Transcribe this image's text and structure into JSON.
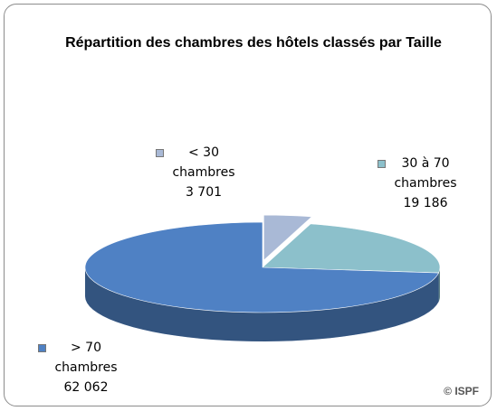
{
  "chart_data": {
    "type": "pie3d",
    "title": "Répartition des chambres des hôtels classés par Taille",
    "categories": [
      "< 30 chambres",
      "30 à 70 chambres",
      "> 70 chambres"
    ],
    "values": [
      3701,
      19186,
      62062
    ],
    "value_labels": [
      "3 701",
      "19 186",
      "62 062"
    ],
    "colors": [
      "#a9b9d6",
      "#8cc0cb",
      "#4f81c4"
    ],
    "source": "© ISPF"
  }
}
